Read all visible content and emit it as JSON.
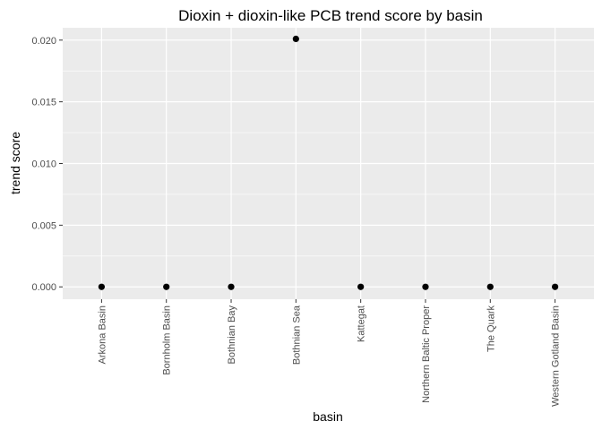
{
  "chart_data": {
    "type": "scatter",
    "title": "Dioxin + dioxin-like PCB trend score by basin",
    "xlabel": "basin",
    "ylabel": "trend score",
    "categories": [
      "Arkona Basin",
      "Bornholm Basin",
      "Bothnian Bay",
      "Bothnian Sea",
      "Kattegat",
      "Northern Baltic Proper",
      "The Quark",
      "Western Gotland Basin"
    ],
    "values": [
      0.0,
      0.0,
      0.0,
      0.0201,
      0.0,
      0.0,
      0.0,
      0.0
    ],
    "ylim": [
      -0.001,
      0.021
    ],
    "yticks": [
      0.0,
      0.005,
      0.01,
      0.015,
      0.02
    ],
    "ytick_labels": [
      "0.000",
      "0.005",
      "0.010",
      "0.015",
      "0.020"
    ],
    "grid": true,
    "legend": "none",
    "colors": {
      "panel": "#ebebeb",
      "grid": "#ffffff",
      "point": "#000000",
      "tick_text": "#4d4d4d"
    }
  }
}
